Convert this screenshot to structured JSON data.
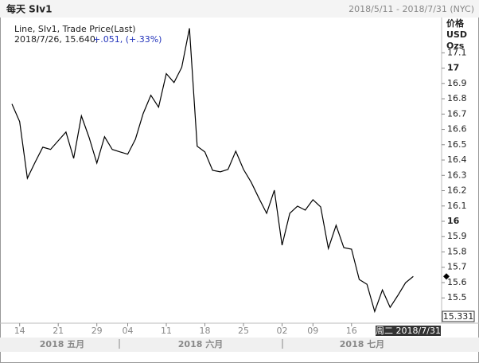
{
  "header": {
    "title": "每天 SIv1",
    "range": "2018/5/11 - 2018/7/31 (NYC)"
  },
  "chart_data": {
    "type": "line",
    "legend": {
      "line1": "Line, SIv1, Trade Price(Last)",
      "line2": "2018/7/26, 15.640,",
      "change": "+.051, (+.33%)"
    },
    "y_axis_label": [
      "价格",
      "USD",
      "Ozs"
    ],
    "categories": [
      null,
      "14",
      null,
      null,
      null,
      null,
      "21",
      null,
      null,
      null,
      null,
      "29",
      null,
      null,
      null,
      "04",
      null,
      null,
      null,
      null,
      "11",
      null,
      null,
      null,
      null,
      "18",
      null,
      null,
      null,
      null,
      "25",
      null,
      null,
      null,
      null,
      "02",
      null,
      null,
      null,
      "09",
      null,
      null,
      null,
      null,
      "16",
      null,
      null,
      null,
      null,
      null,
      null,
      null,
      null
    ],
    "values": [
      16.766,
      16.651,
      16.281,
      16.385,
      16.484,
      16.469,
      16.526,
      16.583,
      16.411,
      16.688,
      16.547,
      16.38,
      16.552,
      16.469,
      16.453,
      16.438,
      16.536,
      16.703,
      16.823,
      16.745,
      16.964,
      16.906,
      17.005,
      17.26,
      16.49,
      16.453,
      16.333,
      16.323,
      16.339,
      16.458,
      16.339,
      16.255,
      16.151,
      16.052,
      16.203,
      15.844,
      16.052,
      16.099,
      16.073,
      16.141,
      16.094,
      15.823,
      15.974,
      15.828,
      15.818,
      15.62,
      15.589,
      15.411,
      15.552,
      15.438,
      15.516,
      15.599,
      15.64
    ],
    "color": "#000000",
    "ylim": [
      15.34,
      17.32
    ],
    "yticks": [
      15.5,
      15.6,
      15.7,
      15.8,
      15.9,
      16,
      16.1,
      16.2,
      16.3,
      16.4,
      16.5,
      16.6,
      16.7,
      16.8,
      16.9,
      17,
      17.1
    ],
    "months": [
      "2018 五月",
      "2018 六月",
      "2018 七月"
    ],
    "crosshair": {
      "x_label": "周二 2018/7/31",
      "y_label": "15.331"
    }
  }
}
